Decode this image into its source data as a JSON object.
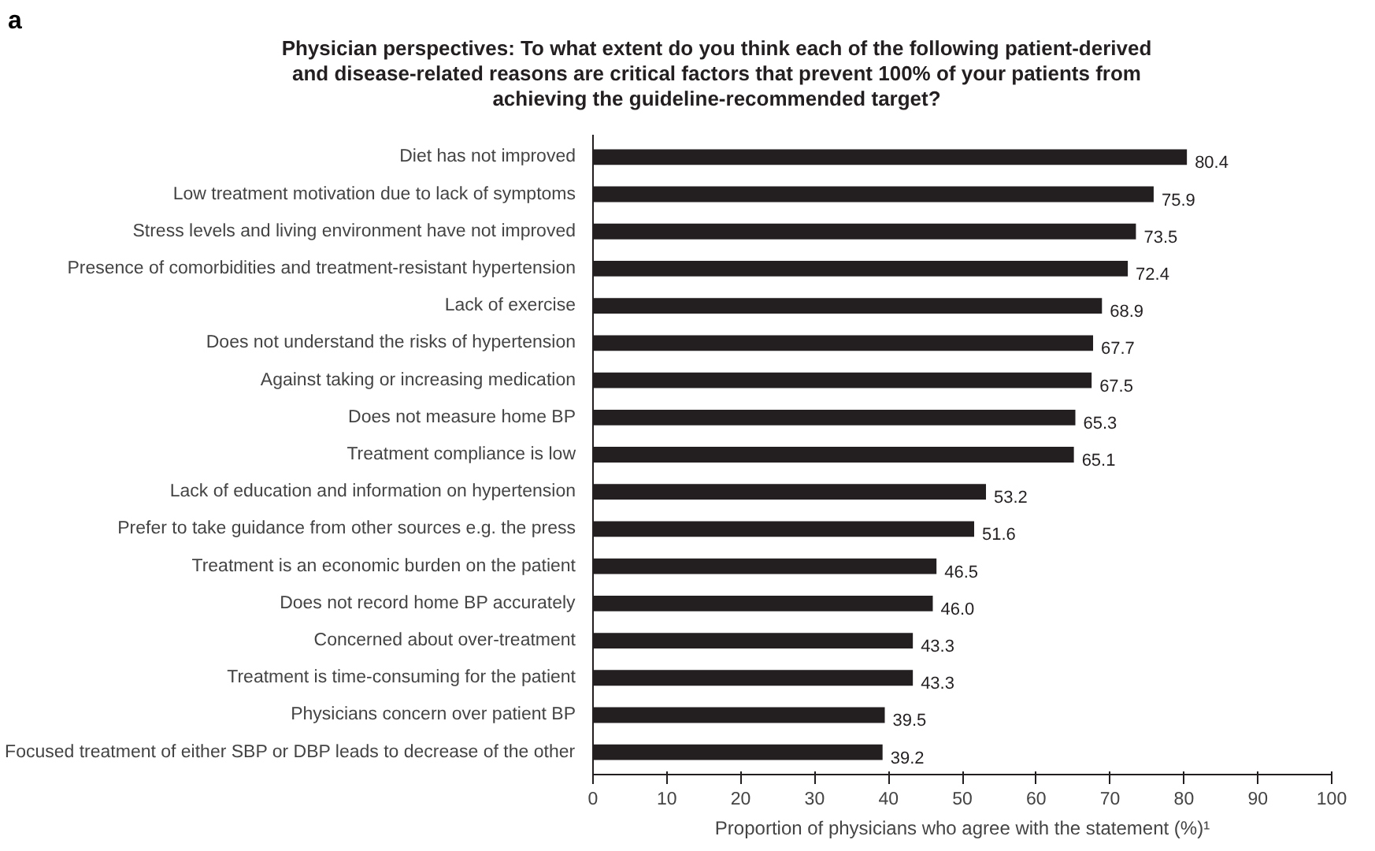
{
  "chart_data": {
    "type": "bar",
    "orientation": "horizontal",
    "title": "Physician perspectives: To what extent do you think each of the following patient-derived and disease-related reasons are critical factors that prevent 100% of your patients from achieving the guideline-recommended target?",
    "annotations": [
      "a"
    ],
    "categories": [
      "Diet has not improved",
      "Low treatment motivation due to lack of symptoms",
      "Stress levels and living environment have not improved",
      "Presence of comorbidities and treatment-resistant hypertension",
      "Lack of exercise",
      "Does not understand the risks of hypertension",
      "Against taking or increasing medication",
      "Does not measure home BP",
      "Treatment compliance is low",
      "Lack of education and information on hypertension",
      "Prefer to take guidance from other sources e.g. the press",
      "Treatment is an economic burden on the patient",
      "Does not record home BP accurately",
      "Concerned about over-treatment",
      "Treatment is time-consuming for the patient",
      "Physicians concern over patient BP",
      "Focused treatment of either SBP or DBP leads to decrease of the other"
    ],
    "values": [
      80.4,
      75.9,
      73.5,
      72.4,
      68.9,
      67.7,
      67.5,
      65.3,
      65.1,
      53.2,
      51.6,
      46.5,
      46.0,
      43.3,
      43.3,
      39.5,
      39.2
    ],
    "value_labels": [
      "80.4",
      "75.9",
      "73.5",
      "72.4",
      "68.9",
      "67.7",
      "67.5",
      "65.3",
      "65.1",
      "53.2",
      "51.6",
      "46.5",
      "46.0",
      "43.3",
      "43.3",
      "39.5",
      "39.2"
    ],
    "color": "#231f20",
    "xlabel": "Proportion of physicians who agree with the statement (%)¹",
    "xlim": [
      0,
      100
    ],
    "xticks": [
      0,
      10,
      20,
      30,
      40,
      50,
      60,
      70,
      80,
      90,
      100
    ],
    "grid": false
  }
}
